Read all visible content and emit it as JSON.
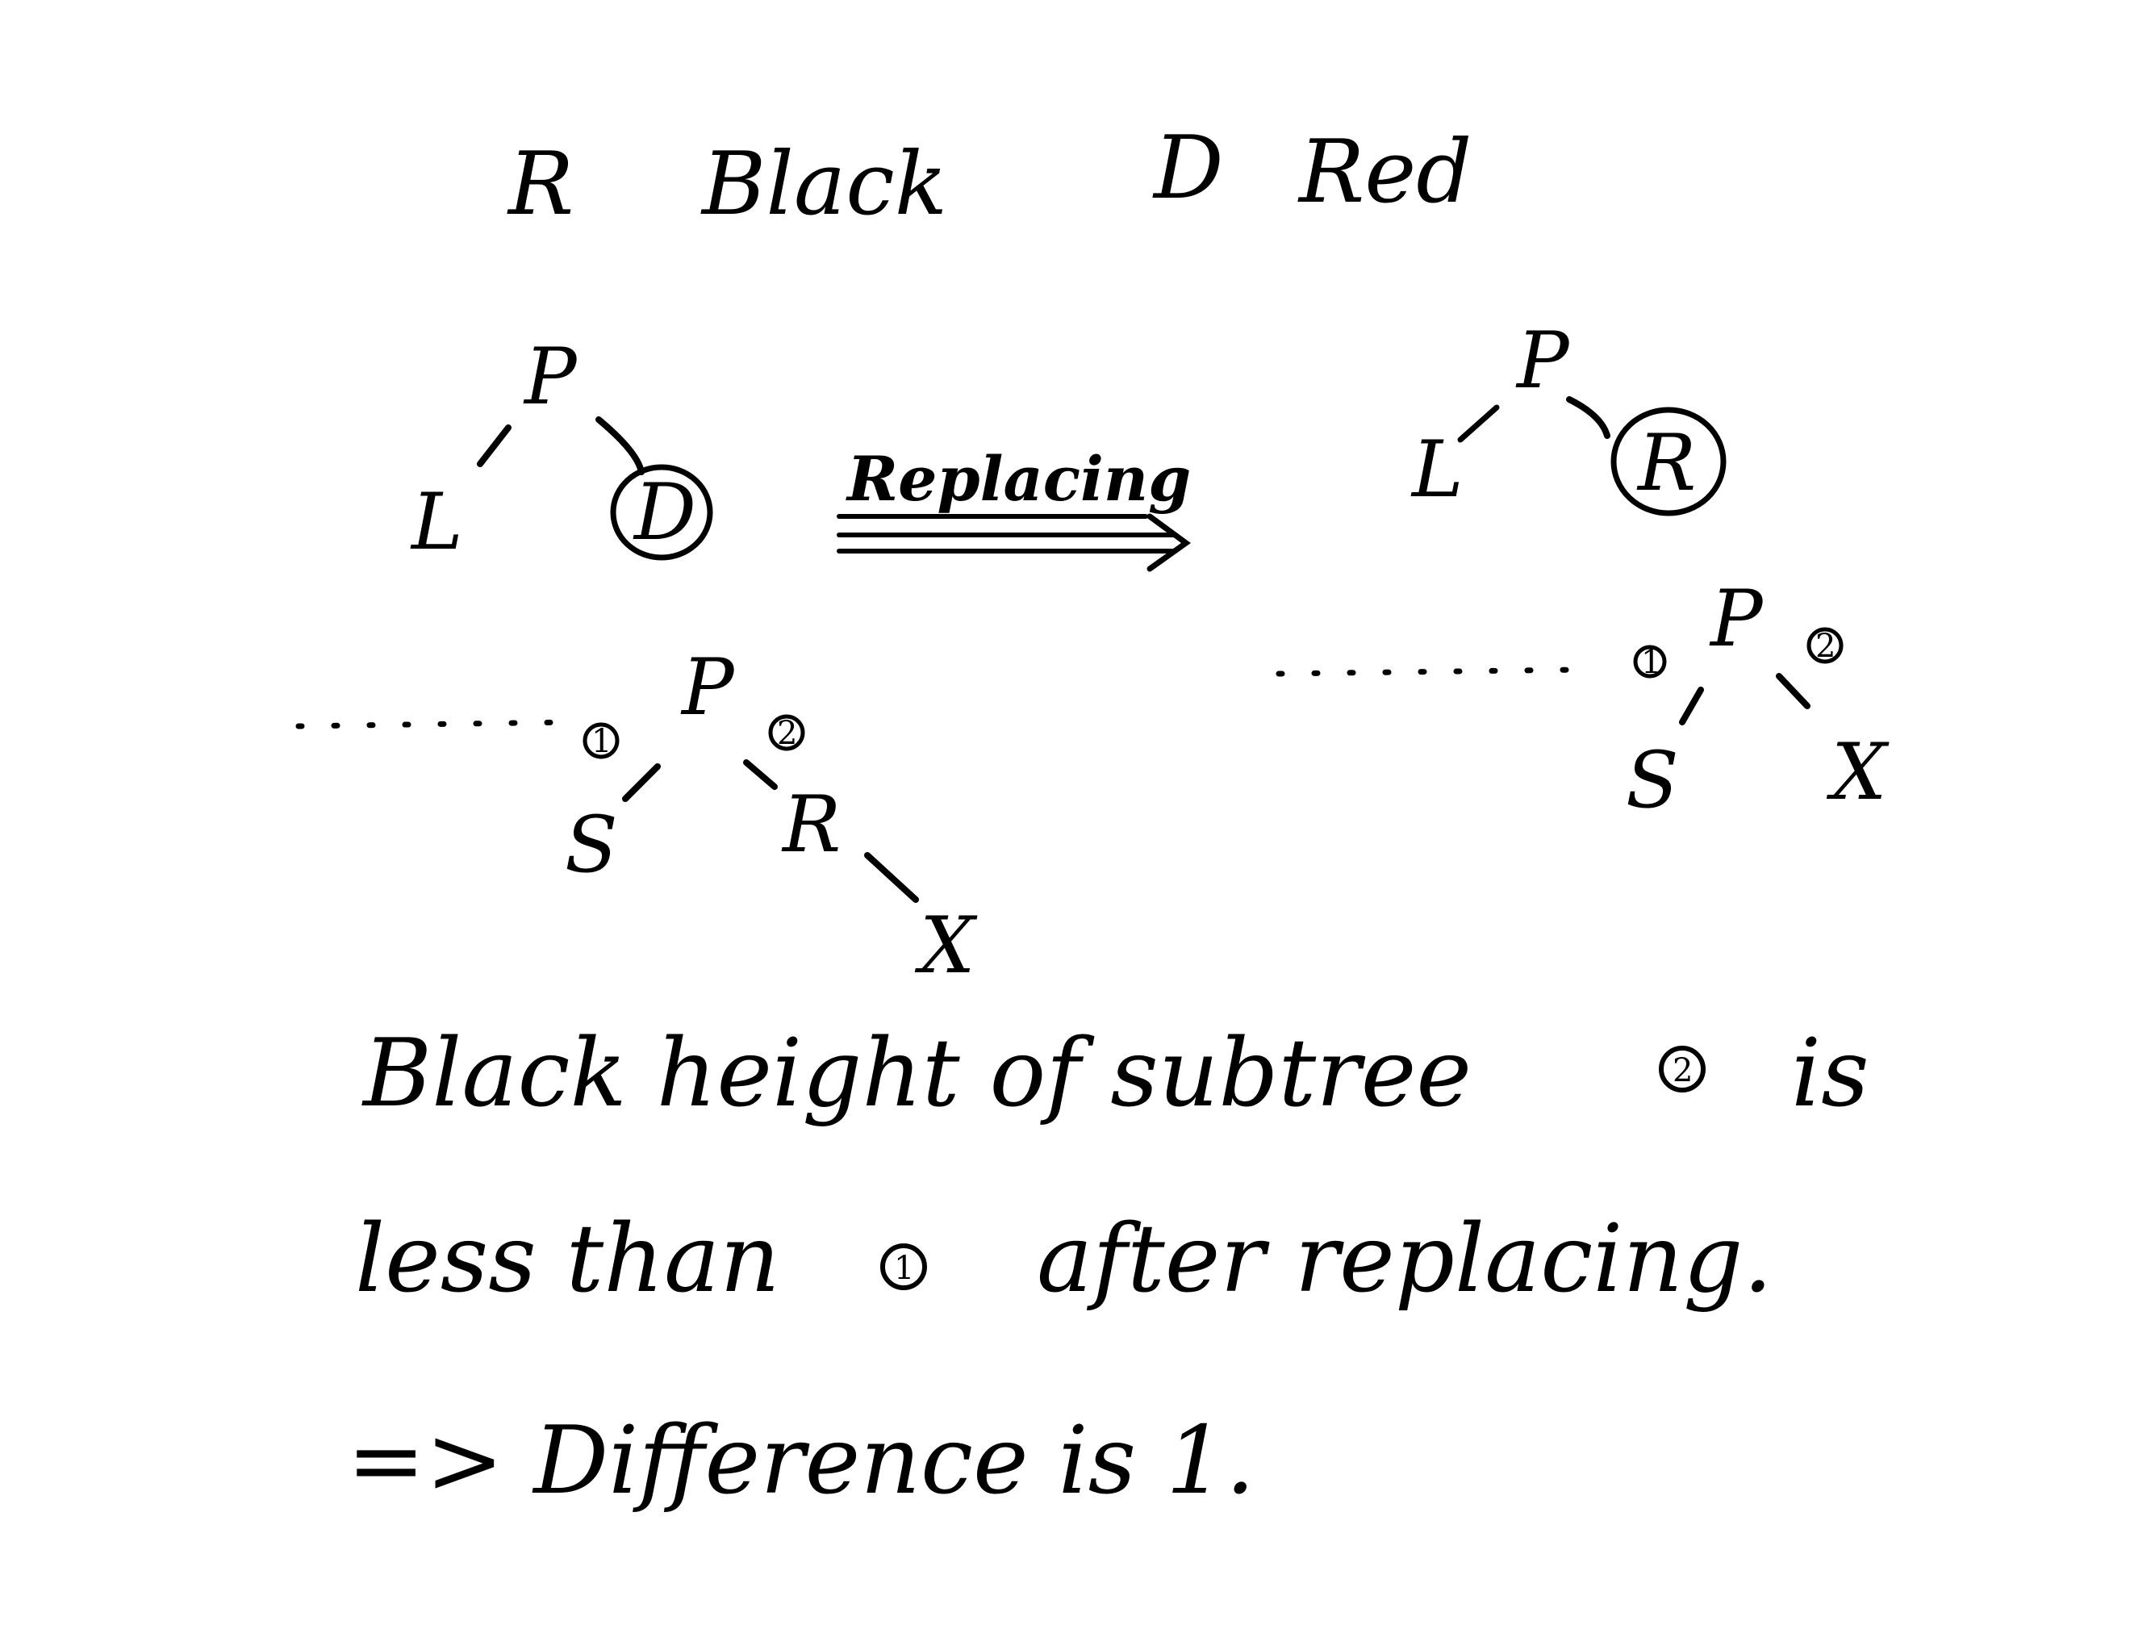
{
  "legend": {
    "r_letter": "R",
    "r_color": "Black",
    "d_letter": "D",
    "d_color": "Red"
  },
  "left_top": {
    "p": "P",
    "l": "L",
    "d": "D"
  },
  "arrow": {
    "label": "Replacing"
  },
  "right_top": {
    "p": "P",
    "l": "L",
    "r": "R"
  },
  "left_bottom": {
    "p": "P",
    "s": "S",
    "r": "R",
    "x": "X",
    "sub1": "1",
    "sub2": "2"
  },
  "right_bottom": {
    "p": "P",
    "s": "S",
    "x": "X",
    "sub1": "1",
    "sub2": "2"
  },
  "conclusion": {
    "line1_a": "Black height of subtree",
    "line1_num": "2",
    "line1_b": "is",
    "line2_a": "less than",
    "line2_num": "1",
    "line2_b": "after replacing.",
    "line3": "=> Difference is 1."
  }
}
